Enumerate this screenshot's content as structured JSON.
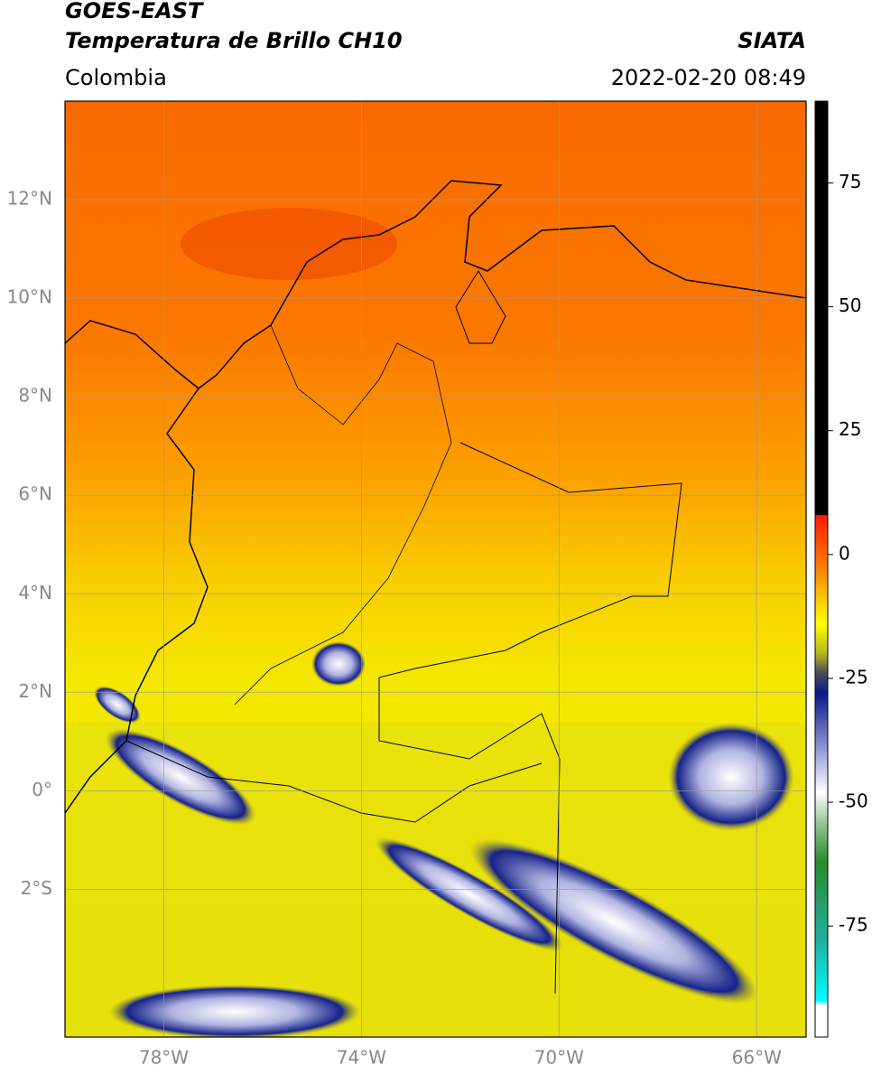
{
  "header": {
    "title": "GOES-EAST",
    "subtitle": "Temperatura de Brillo CH10",
    "source": "SIATA",
    "region": "Colombia",
    "datetime": "2022-02-20 08:49"
  },
  "map": {
    "xlim": [
      -80,
      -65
    ],
    "ylim": [
      -5,
      14
    ],
    "xticks": [
      {
        "value": -78,
        "label": "78°W"
      },
      {
        "value": -74,
        "label": "74°W"
      },
      {
        "value": -70,
        "label": "70°W"
      },
      {
        "value": -66,
        "label": "66°W"
      }
    ],
    "yticks": [
      {
        "value": 12,
        "label": "12°N"
      },
      {
        "value": 10,
        "label": "10°N"
      },
      {
        "value": 8,
        "label": "8°N"
      },
      {
        "value": 6,
        "label": "6°N"
      },
      {
        "value": 4,
        "label": "4°N"
      },
      {
        "value": 2,
        "label": "2°N"
      },
      {
        "value": 0,
        "label": "0°"
      },
      {
        "value": -2,
        "label": "2°S"
      }
    ],
    "grid": true
  },
  "colorbar": {
    "lim": [
      -97.4,
      91.5
    ],
    "ticks": [
      75,
      50,
      25,
      0,
      -25,
      -50,
      -75
    ],
    "colormap": [
      {
        "value": 91.5,
        "color": "#000000"
      },
      {
        "value": 8,
        "color": "#000000"
      },
      {
        "value": 7.9,
        "color": "#ff1a00"
      },
      {
        "value": 0,
        "color": "#ff6400"
      },
      {
        "value": -14,
        "color": "#ffff00"
      },
      {
        "value": -20,
        "color": "#b5b520"
      },
      {
        "value": -24,
        "color": "#4a4a5a"
      },
      {
        "value": -28,
        "color": "#0a1a8a"
      },
      {
        "value": -40,
        "color": "#9aa0d8"
      },
      {
        "value": -48,
        "color": "#ffffff"
      },
      {
        "value": -55,
        "color": "#8ac08a"
      },
      {
        "value": -62,
        "color": "#2a8a2a"
      },
      {
        "value": -78,
        "color": "#20b0a0"
      },
      {
        "value": -90,
        "color": "#00ffff"
      },
      {
        "value": -91,
        "color": "#ffffff"
      },
      {
        "value": -97.4,
        "color": "#ffffff"
      }
    ]
  }
}
